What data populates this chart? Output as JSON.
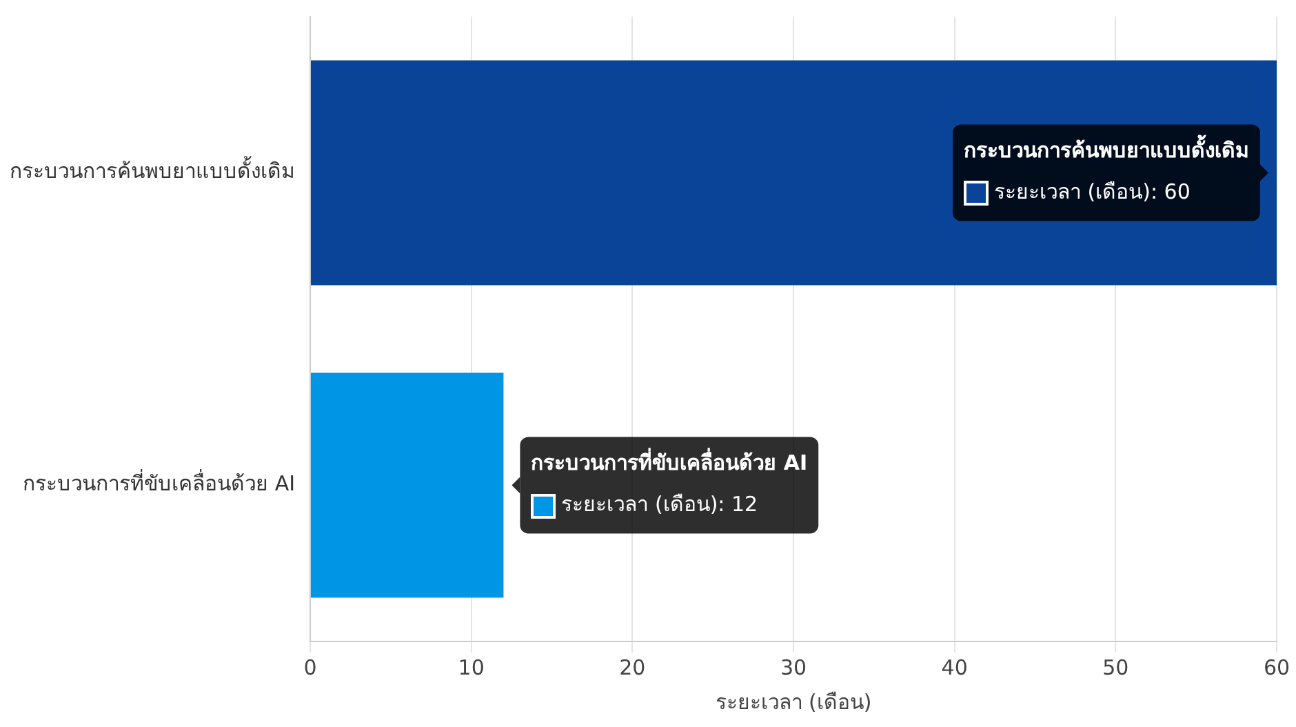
{
  "chart_data": {
    "type": "bar",
    "orientation": "horizontal",
    "xlabel": "ระยะเวลา (เดือน)",
    "categories": [
      "กระบวนการค้นพบยาแบบดั้งเดิม",
      "กระบวนการที่ขับเคลื่อนด้วย AI"
    ],
    "series": [
      {
        "colors": [
          "#0a4499",
          "#0096e6"
        ],
        "values": [
          60,
          12
        ],
        "value_labels": [
          "ระยะเวลา (เดือน): 60",
          "ระยะเวลา (เดือน): 12"
        ]
      }
    ],
    "xlim": [
      0,
      60
    ],
    "xticks": [
      0,
      10,
      20,
      30,
      40,
      50,
      60
    ],
    "grid": "x",
    "legend": false
  }
}
